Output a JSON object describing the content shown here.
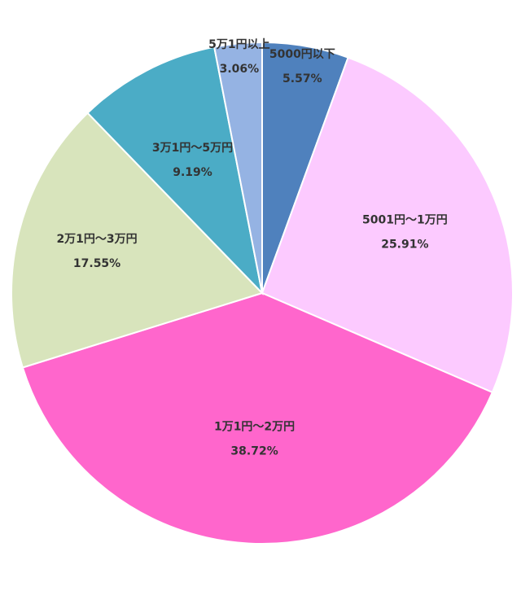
{
  "chart_data": {
    "type": "pie",
    "start": "top",
    "direction": "clockwise",
    "slices": [
      {
        "label": "5000円以下",
        "value": 5.57,
        "value_label": "5.57%",
        "color": "#4f81bd"
      },
      {
        "label": "5001円～1万円",
        "value": 25.91,
        "value_label": "25.91%",
        "color": "#fccaff"
      },
      {
        "label": "1万1円～2万円",
        "value": 38.72,
        "value_label": "38.72%",
        "color": "#ff66cc"
      },
      {
        "label": "2万1円～3万円",
        "value": 17.55,
        "value_label": "17.55%",
        "color": "#d8e4bc"
      },
      {
        "label": "3万1円～5万円",
        "value": 9.19,
        "value_label": "9.19%",
        "color": "#4bacc6"
      },
      {
        "label": "5万1円以上",
        "value": 3.06,
        "value_label": "3.06%",
        "color": "#95b3e3"
      }
    ]
  }
}
